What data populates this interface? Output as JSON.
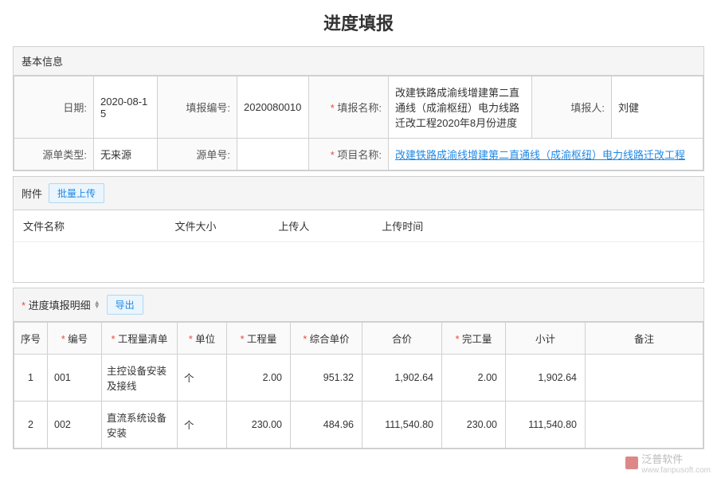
{
  "title": "进度填报",
  "basicInfo": {
    "header": "基本信息",
    "labels": {
      "date": "日期:",
      "reportNo": "填报编号:",
      "reportName": "填报名称:",
      "reporter": "填报人:",
      "sourceType": "源单类型:",
      "sourceNo": "源单号:",
      "projectName": "项目名称:"
    },
    "values": {
      "date": "2020-08-15",
      "reportNo": "2020080010",
      "reportName": "改建铁路成渝线增建第二直通线（成渝枢纽）电力线路迁改工程2020年8月份进度",
      "reporter": "刘健",
      "sourceType": "无来源",
      "sourceNo": "",
      "projectName": "改建铁路成渝线增建第二直通线（成渝枢纽）电力线路迁改工程"
    }
  },
  "attachments": {
    "header": "附件",
    "uploadBtn": "批量上传",
    "columns": {
      "name": "文件名称",
      "size": "文件大小",
      "uploader": "上传人",
      "time": "上传时间"
    }
  },
  "detail": {
    "header": "进度填报明细",
    "exportBtn": "导出",
    "columns": {
      "seq": "序号",
      "code": "编号",
      "listName": "工程量清单",
      "unit": "单位",
      "qty": "工程量",
      "price": "综合单价",
      "total": "合价",
      "done": "完工量",
      "subtotal": "小计",
      "remark": "备注"
    },
    "rows": [
      {
        "seq": "1",
        "code": "001",
        "listName": "主控设备安装及接线",
        "unit": "个",
        "qty": "2.00",
        "price": "951.32",
        "total": "1,902.64",
        "done": "2.00",
        "subtotal": "1,902.64",
        "remark": ""
      },
      {
        "seq": "2",
        "code": "002",
        "listName": "直流系统设备安装",
        "unit": "个",
        "qty": "230.00",
        "price": "484.96",
        "total": "111,540.80",
        "done": "230.00",
        "subtotal": "111,540.80",
        "remark": ""
      }
    ]
  },
  "watermark": {
    "brand": "泛普软件",
    "url": "www.fanpusoft.com"
  }
}
